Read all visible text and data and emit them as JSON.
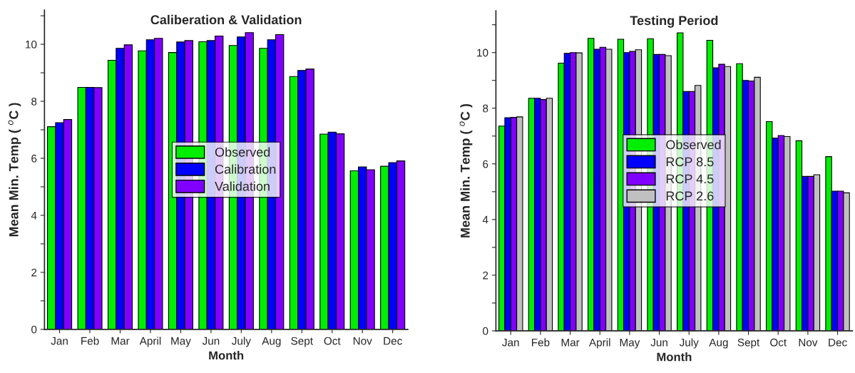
{
  "chart_data": [
    {
      "type": "bar",
      "title": "Caliberation & Validation",
      "xlabel": "Month",
      "ylabel": "Mean Min. Temp ( $^{o}$C )",
      "categories": [
        "Jan",
        "Feb",
        "Mar",
        "April",
        "May",
        "Jun",
        "July",
        "Aug",
        "Sept",
        "Oct",
        "Nov",
        "Dec"
      ],
      "series": [
        {
          "name": "Observed",
          "color": "#00ee00",
          "values": [
            7.11,
            8.49,
            9.44,
            9.77,
            9.71,
            10.09,
            9.96,
            9.86,
            8.87,
            6.85,
            5.56,
            5.72
          ]
        },
        {
          "name": "Calibration",
          "color": "#0000ff",
          "values": [
            7.25,
            8.49,
            9.86,
            10.16,
            10.08,
            10.13,
            10.26,
            10.16,
            9.08,
            6.92,
            5.7,
            5.85
          ]
        },
        {
          "name": "Validation",
          "color": "#8000ff",
          "values": [
            7.36,
            8.48,
            9.98,
            10.21,
            10.13,
            10.29,
            10.41,
            10.34,
            9.13,
            6.86,
            5.6,
            5.91
          ]
        }
      ],
      "ylim": [
        0,
        11.2
      ],
      "yticks": [
        0,
        {
          "value": 1,
          "label": null
        },
        2,
        {
          "value": 3,
          "label": null
        },
        4,
        {
          "value": 5,
          "label": null
        },
        6,
        {
          "value": 7,
          "label": null
        },
        8,
        {
          "value": 9,
          "label": null
        },
        10,
        {
          "value": 11,
          "label": null
        }
      ],
      "legend": "center",
      "grid": false
    },
    {
      "type": "bar",
      "title": "Testing Period",
      "xlabel": "Month",
      "ylabel": "Mean Min. Temp ( $^{o}$C )",
      "categories": [
        "Jan",
        "Feb",
        "Mar",
        "April",
        "May",
        "Jun",
        "July",
        "Aug",
        "Sept",
        "Oct",
        "Nov",
        "Dec"
      ],
      "series": [
        {
          "name": "Observed",
          "color": "#00ee00",
          "values": [
            7.36,
            8.36,
            9.62,
            10.51,
            10.48,
            10.5,
            10.71,
            10.44,
            9.6,
            7.52,
            6.83,
            6.26
          ]
        },
        {
          "name": "RCP 8.5",
          "color": "#0000ff",
          "values": [
            7.66,
            8.36,
            9.97,
            10.12,
            10.0,
            9.93,
            8.6,
            9.45,
            9.0,
            6.93,
            5.55,
            5.02
          ]
        },
        {
          "name": "RCP 4.5",
          "color": "#8000ff",
          "values": [
            7.67,
            8.31,
            10.0,
            10.19,
            10.04,
            9.93,
            8.6,
            9.58,
            8.98,
            7.02,
            5.55,
            5.02
          ]
        },
        {
          "name": "RCP 2.6",
          "color": "#c0c0c0",
          "values": [
            7.69,
            8.36,
            9.99,
            10.12,
            10.1,
            9.89,
            8.82,
            9.5,
            9.11,
            6.98,
            5.61,
            4.96
          ]
        }
      ],
      "ylim": [
        0,
        11.5
      ],
      "yticks": [
        0,
        {
          "value": 1,
          "label": null
        },
        2,
        {
          "value": 3,
          "label": null
        },
        4,
        {
          "value": 5,
          "label": null
        },
        6,
        {
          "value": 7,
          "label": null
        },
        8,
        {
          "value": 9,
          "label": null
        },
        10,
        {
          "value": 11,
          "label": null
        }
      ],
      "legend": "center",
      "grid": false
    }
  ]
}
